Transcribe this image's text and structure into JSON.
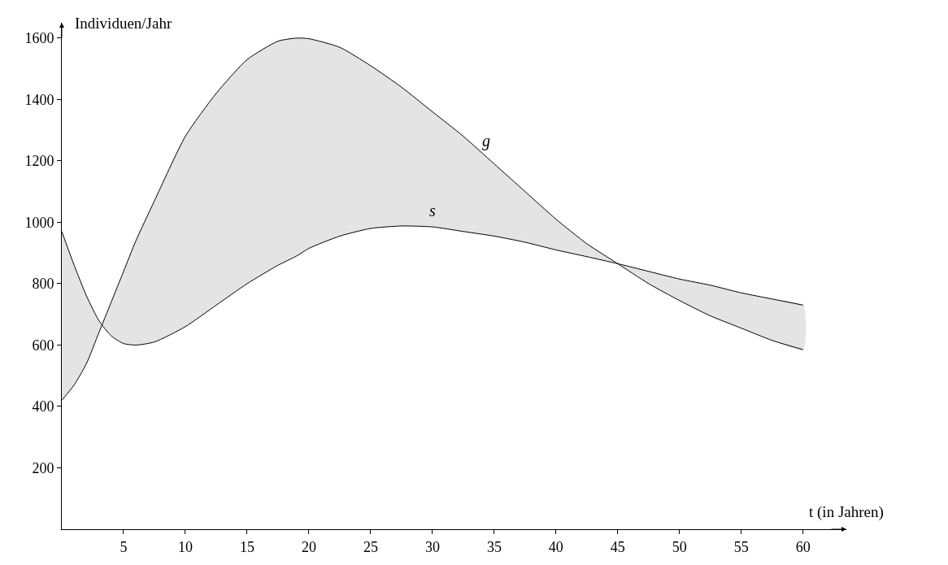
{
  "chart_data": {
    "type": "line",
    "xlabel": "t (in Jahren)",
    "ylabel": "Individuen/Jahr",
    "x": [
      0,
      1,
      2,
      3,
      4,
      5,
      6,
      7.5,
      10,
      12.5,
      15,
      17.5,
      19,
      20,
      22.5,
      25,
      27.5,
      30,
      32.5,
      35,
      37.5,
      40,
      42.5,
      45,
      47.5,
      50,
      52.5,
      55,
      57.5,
      60
    ],
    "series": [
      {
        "name": "s",
        "color": "#000000",
        "values": [
          970,
          860,
          760,
          680,
          630,
          605,
          600,
          610,
          660,
          730,
          800,
          860,
          890,
          915,
          955,
          980,
          988,
          985,
          970,
          955,
          935,
          910,
          888,
          865,
          840,
          815,
          795,
          770,
          750,
          730
        ]
      },
      {
        "name": "g",
        "color": "#000000",
        "values": [
          420,
          470,
          540,
          640,
          740,
          840,
          940,
          1070,
          1280,
          1420,
          1530,
          1590,
          1600,
          1598,
          1570,
          1510,
          1440,
          1360,
          1280,
          1190,
          1100,
          1010,
          930,
          865,
          800,
          745,
          695,
          655,
          615,
          585
        ],
        "lower": [
          970,
          860,
          760,
          680,
          630,
          605,
          600,
          610,
          660,
          730,
          800,
          860,
          890,
          915,
          955,
          980,
          988,
          985,
          970,
          955,
          935,
          910,
          888,
          865,
          840,
          815,
          795,
          770,
          750,
          730
        ],
        "upper": [
          420,
          470,
          540,
          640,
          740,
          840,
          940,
          1070,
          1280,
          1420,
          1530,
          1590,
          1600,
          1598,
          1570,
          1510,
          1440,
          1360,
          1280,
          1190,
          1100,
          1010,
          930,
          865,
          800,
          745,
          695,
          655,
          615,
          585
        ]
      }
    ],
    "xlim": [
      0,
      63.5
    ],
    "ylim": [
      0,
      1650
    ],
    "xticks": [
      5,
      10,
      15,
      20,
      25,
      30,
      35,
      40,
      45,
      50,
      55,
      60
    ],
    "yticks": [
      200,
      400,
      600,
      800,
      1000,
      1200,
      1400,
      1600
    ],
    "legend": false,
    "marker": "none",
    "line_style": "solid"
  }
}
